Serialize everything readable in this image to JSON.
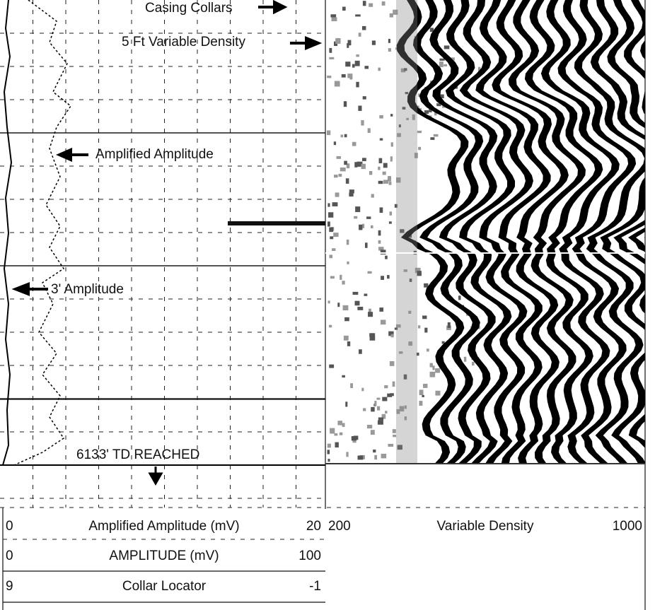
{
  "annotations": {
    "casing_collars": "Casing Collars",
    "variable_density": "5 Ft Variable Density",
    "amplified_amplitude": "Amplified Amplitude",
    "amplitude_3ft": "3' Amplitude",
    "td_reached": "6133' TD REACHED"
  },
  "scales": {
    "rows": [
      [
        "0",
        "Amplified Amplitude (mV)",
        "20"
      ],
      [
        "0",
        "AMPLITUDE (mV)",
        "100"
      ],
      [
        "9",
        "Collar Locator",
        "-1"
      ]
    ],
    "vdl": [
      "200",
      "Variable Density",
      "1000"
    ]
  }
}
